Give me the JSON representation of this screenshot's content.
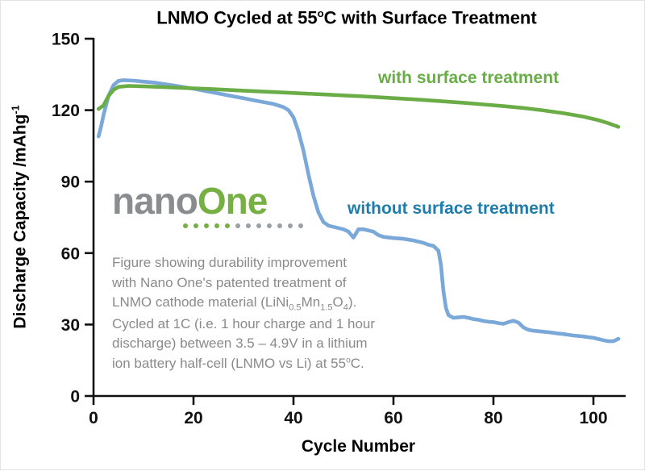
{
  "title_rich": "LNMO Cycled at 55^{o}C with Surface Treatment",
  "axes": {
    "x_label": "Cycle Number",
    "y_label_rich": "Discharge Capacity /mAhg^{-1}",
    "x_ticks": [
      0,
      20,
      40,
      60,
      80,
      100
    ],
    "y_ticks": [
      0,
      30,
      60,
      90,
      120,
      150
    ],
    "x_range": [
      0,
      106
    ],
    "y_range": [
      0,
      150
    ]
  },
  "legend": {
    "with_label": "with surface treatment",
    "with_color": "#6aad47",
    "without_label": "without surface treatment",
    "without_color": "#1f7cab"
  },
  "logo": {
    "part1": "nano",
    "part1_color": "#8a8d8f",
    "part2": "One",
    "part2_color": "#76b043",
    "dots_green": 5,
    "dots_gray": 7,
    "dot_green_color": "#76b043",
    "dot_gray_color": "#9aa0a3"
  },
  "caption_lines": [
    "Figure showing durability improvement",
    "with Nano One's patented treatment of",
    "LNMO cathode material (LiNi_{0.5}Mn_{1.5}O_{4}).",
    "Cycled at 1C (i.e. 1 hour charge and 1 hour",
    "discharge) between 3.5 – 4.9V in a lithium",
    "ion battery half-cell (LNMO vs Li) at 55^{o}C."
  ],
  "chart_data": {
    "type": "line",
    "title": "LNMO Cycled at 55°C with Surface Treatment",
    "xlabel": "Cycle Number",
    "ylabel": "Discharge Capacity /mAhg⁻¹",
    "xlim": [
      0,
      106
    ],
    "ylim": [
      0,
      150
    ],
    "x_ticks": [
      0,
      20,
      40,
      60,
      80,
      100
    ],
    "y_ticks": [
      0,
      30,
      60,
      90,
      120,
      150
    ],
    "grid": false,
    "legend_position": "inline-annotations",
    "series": [
      {
        "name": "with surface treatment",
        "color": "#6aad47",
        "points": [
          [
            1,
            120.5
          ],
          [
            2,
            122
          ],
          [
            3,
            126
          ],
          [
            4,
            128.5
          ],
          [
            5,
            129.8
          ],
          [
            7,
            130.2
          ],
          [
            10,
            130
          ],
          [
            14,
            129.7
          ],
          [
            18,
            129.3
          ],
          [
            22,
            129
          ],
          [
            26,
            128.6
          ],
          [
            30,
            128.2
          ],
          [
            34,
            127.8
          ],
          [
            38,
            127.4
          ],
          [
            42,
            127
          ],
          [
            46,
            126.6
          ],
          [
            50,
            126.2
          ],
          [
            54,
            125.8
          ],
          [
            58,
            125.3
          ],
          [
            62,
            124.8
          ],
          [
            66,
            124.3
          ],
          [
            70,
            123.7
          ],
          [
            74,
            123.1
          ],
          [
            78,
            122.4
          ],
          [
            82,
            121.7
          ],
          [
            86,
            120.9
          ],
          [
            90,
            119.9
          ],
          [
            94,
            118.7
          ],
          [
            98,
            117.3
          ],
          [
            101,
            115.8
          ],
          [
            103,
            114.5
          ],
          [
            105,
            113
          ]
        ]
      },
      {
        "name": "without surface treatment",
        "color": "#7aa8d8",
        "label_color": "#1f7cab",
        "points": [
          [
            1,
            109
          ],
          [
            1.5,
            113
          ],
          [
            2,
            118
          ],
          [
            3,
            126
          ],
          [
            4,
            130.5
          ],
          [
            5,
            132.3
          ],
          [
            6,
            132.6
          ],
          [
            8,
            132.4
          ],
          [
            10,
            132
          ],
          [
            12,
            131.6
          ],
          [
            14,
            131
          ],
          [
            16,
            130.4
          ],
          [
            18,
            129.7
          ],
          [
            20,
            129
          ],
          [
            22,
            128.2
          ],
          [
            24,
            127.4
          ],
          [
            26,
            126.6
          ],
          [
            28,
            125.8
          ],
          [
            30,
            125
          ],
          [
            32,
            124.2
          ],
          [
            34,
            123.4
          ],
          [
            36,
            122.6
          ],
          [
            38,
            121.3
          ],
          [
            39,
            120
          ],
          [
            40,
            117
          ],
          [
            41,
            111
          ],
          [
            42,
            103
          ],
          [
            43,
            93
          ],
          [
            44,
            84
          ],
          [
            45,
            77
          ],
          [
            46,
            73
          ],
          [
            47,
            71.5
          ],
          [
            48,
            71
          ],
          [
            49,
            70.5
          ],
          [
            50,
            70
          ],
          [
            51,
            69
          ],
          [
            52,
            66.5
          ],
          [
            53,
            70
          ],
          [
            54,
            70
          ],
          [
            55,
            69.5
          ],
          [
            56,
            69
          ],
          [
            57,
            67.5
          ],
          [
            58,
            66.8
          ],
          [
            60,
            66.3
          ],
          [
            62,
            66
          ],
          [
            64,
            65.3
          ],
          [
            66,
            64.3
          ],
          [
            67,
            63.5
          ],
          [
            68,
            63
          ],
          [
            69,
            61
          ],
          [
            69.5,
            55
          ],
          [
            70,
            44
          ],
          [
            70.5,
            37
          ],
          [
            71,
            34
          ],
          [
            72,
            32.8
          ],
          [
            73,
            33
          ],
          [
            74,
            33.2
          ],
          [
            75,
            32.8
          ],
          [
            76,
            32.3
          ],
          [
            77,
            32
          ],
          [
            78,
            31.5
          ],
          [
            79,
            31.2
          ],
          [
            80,
            31
          ],
          [
            81,
            30.6
          ],
          [
            82,
            30.3
          ],
          [
            83,
            31
          ],
          [
            84,
            31.6
          ],
          [
            85,
            30.8
          ],
          [
            86,
            28.8
          ],
          [
            87,
            27.8
          ],
          [
            88,
            27.4
          ],
          [
            89,
            27.2
          ],
          [
            90,
            27
          ],
          [
            91,
            26.8
          ],
          [
            92,
            26.5
          ],
          [
            93,
            26.2
          ],
          [
            94,
            26
          ],
          [
            95,
            25.7
          ],
          [
            96,
            25.4
          ],
          [
            97,
            25.2
          ],
          [
            98,
            25
          ],
          [
            99,
            24.7
          ],
          [
            100,
            24.4
          ],
          [
            101,
            23.9
          ],
          [
            102,
            23.4
          ],
          [
            103,
            23
          ],
          [
            104,
            23
          ],
          [
            105,
            24
          ]
        ]
      }
    ]
  }
}
